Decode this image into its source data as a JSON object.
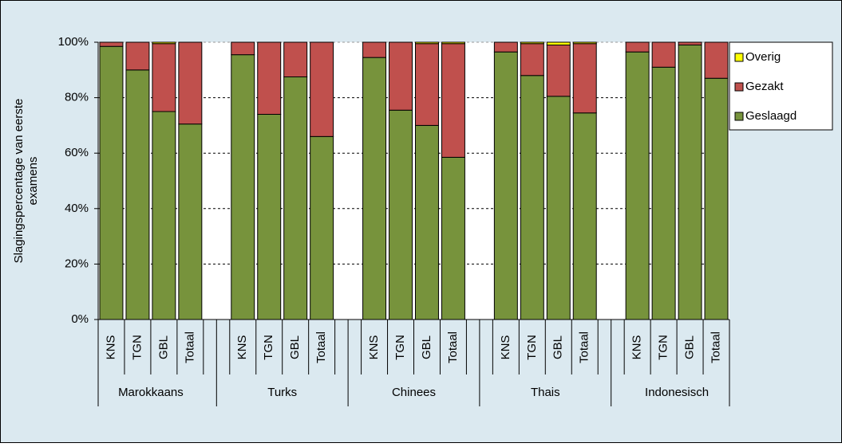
{
  "chart_data": {
    "type": "stacked-bar",
    "ylabel": [
      "Slagingspercentage van eerste",
      "examens"
    ],
    "groups": [
      "Marokkaans",
      "Turks",
      "Chinees",
      "Thais",
      "Indonesisch"
    ],
    "categories": [
      "KNS",
      "TGN",
      "GBL",
      "Totaal",
      "KNS",
      "TGN",
      "GBL",
      "Totaal",
      "KNS",
      "TGN",
      "GBL",
      "Totaal",
      "KNS",
      "TGN",
      "GBL",
      "Totaal",
      "KNS",
      "TGN",
      "GBL",
      "Totaal"
    ],
    "series": [
      {
        "name": "Geslaagd",
        "color": "#77933c",
        "values": [
          98.5,
          90,
          75,
          70.5,
          95.5,
          74,
          87.5,
          66,
          94.5,
          75.5,
          70,
          58.5,
          96.5,
          88,
          80.5,
          74.5,
          96.5,
          91,
          99,
          87
        ]
      },
      {
        "name": "Gezakt",
        "color": "#c0504d",
        "values": [
          1.5,
          10,
          24.5,
          29.5,
          4.5,
          26,
          12.5,
          34,
          5.5,
          24.5,
          29.5,
          41,
          3.5,
          11.5,
          18.5,
          25,
          3.5,
          9,
          1,
          13
        ]
      },
      {
        "name": "Overig",
        "color": "#ffff00",
        "values": [
          0,
          0,
          0.5,
          0,
          0,
          0,
          0,
          0,
          0,
          0,
          0.5,
          0.5,
          0,
          0.5,
          1,
          0.5,
          0,
          0,
          0,
          0
        ]
      }
    ],
    "ylim": [
      0,
      100
    ],
    "yticks": [
      {
        "value": 0,
        "label": "0%"
      },
      {
        "value": 20,
        "label": "20%"
      },
      {
        "value": 40,
        "label": "40%"
      },
      {
        "value": 60,
        "label": "60%"
      },
      {
        "value": 80,
        "label": "80%"
      },
      {
        "value": 100,
        "label": "100%"
      }
    ],
    "grid": true
  }
}
